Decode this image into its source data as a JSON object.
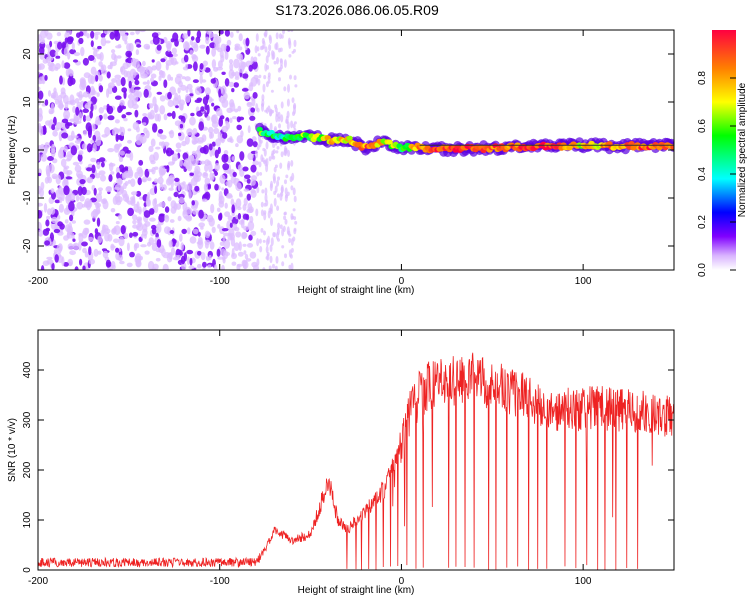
{
  "title": "S173.2026.086.06.05.R09",
  "chart_data": [
    {
      "type": "heatmap",
      "xlabel": "Height of straight line (km)",
      "ylabel": "Frequency (Hz)",
      "xlim": [
        -200,
        150
      ],
      "ylim": [
        -25,
        25
      ],
      "x_ticks": [
        -200,
        -100,
        0,
        100
      ],
      "y_ticks": [
        -20,
        -10,
        0,
        10,
        20
      ],
      "colorbar": {
        "label": "Normalized spectral amplitude",
        "range": [
          0,
          1
        ],
        "ticks": [
          0.0,
          0.2,
          0.4,
          0.6,
          0.8
        ],
        "colors": [
          "#ffffff",
          "#d9b3ff",
          "#8000ff",
          "#0000ff",
          "#00ffff",
          "#00ff00",
          "#ffff00",
          "#ff8000",
          "#ff0040"
        ]
      },
      "noise_region_km": [
        -200,
        -80
      ],
      "sparse_region_km": [
        -80,
        -58
      ],
      "signal_centre_line_hz": 1.0,
      "signal_track": {
        "x_km": [
          -78,
          -70,
          -60,
          -50,
          -40,
          -30,
          -20,
          -10,
          0,
          10,
          20,
          40,
          60,
          80,
          100,
          120,
          150
        ],
        "freq_hz": [
          4.0,
          3.0,
          2.5,
          2.8,
          2.0,
          2.3,
          0.5,
          1.8,
          0.5,
          0.5,
          0.2,
          0.3,
          0.6,
          0.8,
          1.0,
          0.8,
          1.0
        ],
        "amplitude": [
          0.55,
          0.45,
          0.5,
          0.6,
          0.7,
          0.75,
          0.85,
          0.7,
          0.55,
          0.8,
          0.95,
          0.92,
          0.85,
          0.95,
          0.7,
          0.85,
          0.9
        ]
      }
    },
    {
      "type": "line",
      "xlabel": "Height of straight line (km)",
      "ylabel": "SNR (10 * v/v)",
      "xlim": [
        -200,
        150
      ],
      "ylim": [
        0,
        480
      ],
      "x_ticks": [
        -200,
        -100,
        0,
        100
      ],
      "y_ticks": [
        0,
        100,
        200,
        300,
        400
      ],
      "color": "#ee2222",
      "envelope": {
        "x_km": [
          -200,
          -80,
          -75,
          -70,
          -60,
          -50,
          -40,
          -35,
          -30,
          -20,
          -10,
          -5,
          0,
          5,
          10,
          15,
          20,
          30,
          40,
          50,
          60,
          70,
          80,
          85,
          90,
          100,
          110,
          120,
          130,
          140,
          150
        ],
        "snr": [
          15,
          15,
          40,
          80,
          60,
          70,
          180,
          100,
          80,
          120,
          160,
          200,
          250,
          320,
          350,
          370,
          380,
          380,
          390,
          370,
          360,
          340,
          320,
          310,
          330,
          320,
          330,
          320,
          320,
          310,
          310
        ]
      },
      "dropout_x_km": [
        -30,
        -25,
        -22,
        -18,
        -14,
        -10,
        -6,
        -2,
        3,
        8,
        12,
        26,
        30,
        35,
        40,
        48,
        52,
        58,
        64,
        70,
        75,
        80,
        90,
        96,
        102,
        108,
        112,
        118,
        124,
        130
      ]
    }
  ]
}
